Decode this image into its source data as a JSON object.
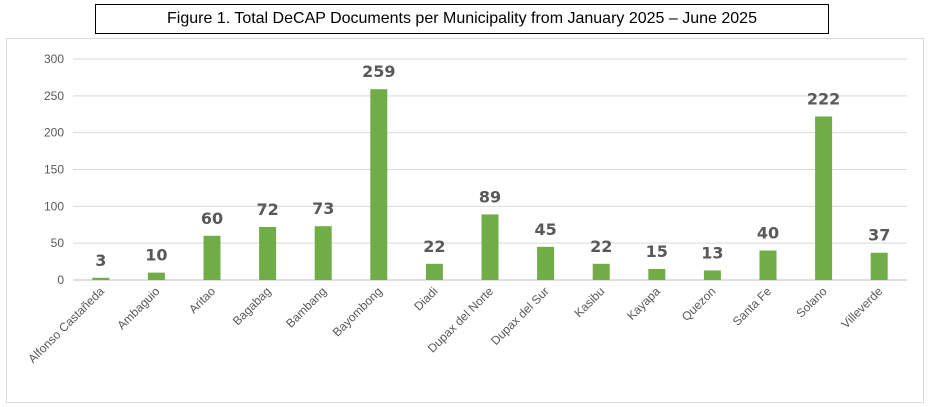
{
  "title": "Figure 1. Total DeCAP Documents per Municipality from January 2025 – June 2025",
  "chart_data": {
    "type": "bar",
    "title": "Figure 1. Total DeCAP Documents per Municipality from January 2025 – June 2025",
    "categories": [
      "Alfonso Castañeda",
      "Ambaguio",
      "Aritao",
      "Bagabag",
      "Bambang",
      "Bayombong",
      "Diadi",
      "Dupax del Norte",
      "Dupax del Sur",
      "Kasibu",
      "Kayapa",
      "Quezon",
      "Santa Fe",
      "Solano",
      "Villeverde"
    ],
    "values": [
      3,
      10,
      60,
      72,
      73,
      259,
      22,
      89,
      45,
      22,
      15,
      13,
      40,
      222,
      37
    ],
    "ylim": [
      0,
      300
    ],
    "yticks": [
      0,
      50,
      100,
      150,
      200,
      250,
      300
    ],
    "grid": true,
    "legend": "none",
    "bar_color": "#70ad47",
    "label_color": "#595959"
  }
}
